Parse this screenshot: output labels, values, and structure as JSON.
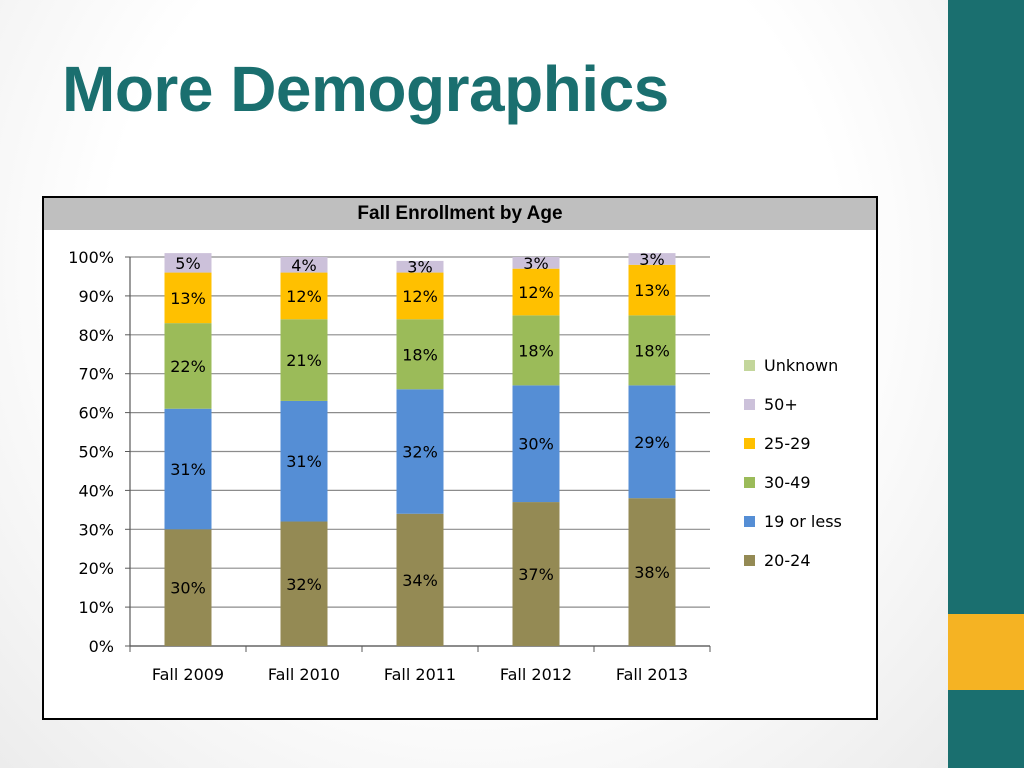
{
  "slide": {
    "title": "More Demographics",
    "colors": {
      "teal": "#1a6f6f",
      "gold": "#f5b323"
    }
  },
  "chart_data": {
    "type": "bar",
    "stacked": true,
    "title": "Fall Enrollment by Age",
    "categories": [
      "Fall 2009",
      "Fall 2010",
      "Fall 2011",
      "Fall 2012",
      "Fall 2013"
    ],
    "ylim": [
      0,
      100
    ],
    "yticks": [
      "0%",
      "10%",
      "20%",
      "30%",
      "40%",
      "50%",
      "60%",
      "70%",
      "80%",
      "90%",
      "100%"
    ],
    "grid": true,
    "legend_position": "right",
    "series": [
      {
        "name": "20-24",
        "color": "#948a54",
        "values": [
          30,
          32,
          34,
          37,
          38
        ],
        "labels": [
          "30%",
          "32%",
          "34%",
          "37%",
          "38%"
        ]
      },
      {
        "name": "19 or less",
        "color": "#558ed5",
        "values": [
          31,
          31,
          32,
          30,
          29
        ],
        "labels": [
          "31%",
          "31%",
          "32%",
          "30%",
          "29%"
        ]
      },
      {
        "name": "30-49",
        "color": "#9bbb59",
        "values": [
          22,
          21,
          18,
          18,
          18
        ],
        "labels": [
          "22%",
          "21%",
          "18%",
          "18%",
          "18%"
        ]
      },
      {
        "name": "25-29",
        "color": "#ffc000",
        "values": [
          13,
          12,
          12,
          12,
          13
        ],
        "labels": [
          "13%",
          "12%",
          "12%",
          "12%",
          "13%"
        ]
      },
      {
        "name": "50+",
        "color": "#ccc1da",
        "values": [
          5,
          4,
          3,
          3,
          3
        ],
        "labels": [
          "5%",
          "4%",
          "3%",
          "3%",
          "3%"
        ]
      },
      {
        "name": "Unknown",
        "color": "#c3d69b",
        "values": [
          0,
          0,
          0,
          0,
          0
        ],
        "labels": [
          "",
          "",
          "",
          "",
          ""
        ]
      }
    ]
  }
}
